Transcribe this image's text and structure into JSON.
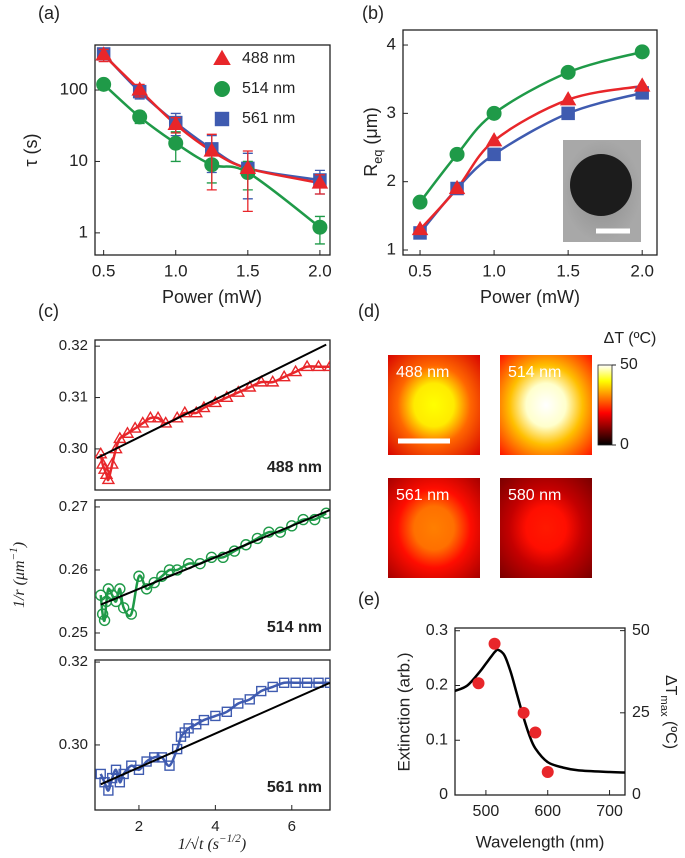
{
  "chart_data": [
    {
      "type": "line",
      "label": "(a)",
      "xlabel": "Power (mW)",
      "ylabel": "τ (s)",
      "ylog": true,
      "x": [
        0.5,
        0.75,
        1.0,
        1.25,
        1.5,
        2.0
      ],
      "xlim": [
        0.44,
        2.07
      ],
      "xticks": [
        0.5,
        {
          "value": 1,
          "label": "1.0"
        },
        1.5,
        {
          "value": 2,
          "label": "2.0"
        }
      ],
      "ylim": [
        0.49,
        427
      ],
      "yticks": [
        1,
        10,
        100
      ],
      "legend": "upper right",
      "series": [
        {
          "name": "488 nm",
          "color": "#e8262a",
          "marker": "triangle",
          "values": [
            310,
            100,
            33,
            14,
            8,
            5
          ],
          "errors": [
            60,
            20,
            8,
            10,
            6,
            1.5
          ]
        },
        {
          "name": "514 nm",
          "color": "#1f9a48",
          "marker": "circle",
          "values": [
            120,
            42,
            18,
            9,
            7,
            1.2
          ],
          "errors": [
            10,
            8,
            8,
            4,
            3,
            0.5
          ]
        },
        {
          "name": "561 nm",
          "color": "#3f5bb0",
          "marker": "square",
          "values": [
            320,
            95,
            35,
            15,
            8,
            5.5
          ],
          "errors": [
            50,
            20,
            12,
            8,
            5,
            2
          ]
        }
      ]
    },
    {
      "type": "line",
      "label": "(b)",
      "xlabel": "Power (mW)",
      "ylabel": [
        {
          "text": "R"
        },
        {
          "text": "eq",
          "sub": true
        },
        {
          "text": " (μm)"
        }
      ],
      "x": [
        0.5,
        0.75,
        1.0,
        1.5,
        2.0
      ],
      "xlim": [
        0.385,
        2.1
      ],
      "xticks": [
        0.5,
        {
          "value": 1,
          "label": "1.0"
        },
        1.5,
        {
          "value": 2,
          "label": "2.0"
        }
      ],
      "ylim": [
        0.927,
        4.22
      ],
      "yticks": [
        1,
        2,
        3,
        4
      ],
      "series": [
        {
          "color": "#e8262a",
          "marker": "triangle",
          "values": [
            1.3,
            1.9,
            2.6,
            3.2,
            3.4
          ]
        },
        {
          "color": "#1f9a48",
          "marker": "circle",
          "values": [
            1.7,
            2.4,
            3.0,
            3.6,
            3.9
          ]
        },
        {
          "color": "#3f5bb0",
          "marker": "square",
          "values": [
            1.25,
            1.9,
            2.4,
            3.0,
            3.3
          ]
        }
      ]
    },
    {
      "type": "scatter",
      "label": "(c)",
      "xlim": [
        0.85,
        7.0
      ],
      "ylim": [
        0.292,
        0.3212
      ],
      "yticks": [
        {
          "value": 0.3,
          "label": "0.30"
        },
        0.31,
        0.32
      ],
      "series": [
        {
          "name": "488 nm",
          "color": "#e8262a",
          "marker": "triangle-open",
          "x": [
            1.0,
            1.05,
            1.1,
            1.15,
            1.2,
            1.3,
            1.4,
            1.5,
            1.7,
            1.9,
            2.1,
            2.3,
            2.5,
            2.7,
            3.0,
            3.2,
            3.5,
            3.7,
            4.0,
            4.3,
            4.6,
            4.9,
            5.2,
            5.5,
            5.8,
            6.1,
            6.4,
            6.7,
            7.0
          ],
          "values": [
            0.299,
            0.297,
            0.296,
            0.295,
            0.294,
            0.297,
            0.3,
            0.302,
            0.303,
            0.304,
            0.305,
            0.306,
            0.306,
            0.305,
            0.306,
            0.307,
            0.307,
            0.308,
            0.309,
            0.31,
            0.311,
            0.312,
            0.313,
            0.313,
            0.314,
            0.315,
            0.316,
            0.316,
            0.316
          ]
        }
      ],
      "fit": {
        "color": "#000000",
        "x": [
          0.9,
          6.9
        ],
        "y": [
          0.2982,
          0.3203
        ]
      }
    },
    {
      "type": "scatter",
      "xlim": [
        0.85,
        7.0
      ],
      "ylim": [
        0.2473,
        0.2711
      ],
      "yticks": [
        0.25,
        0.26,
        0.27
      ],
      "ylabel": [
        {
          "text": "1/r (μm"
        },
        {
          "text": "−1",
          "sup": true
        },
        {
          "text": ")"
        }
      ],
      "series": [
        {
          "name": "514 nm",
          "color": "#1f9a48",
          "marker": "circle-open",
          "x": [
            1.0,
            1.05,
            1.1,
            1.15,
            1.2,
            1.3,
            1.4,
            1.5,
            1.6,
            1.8,
            2.0,
            2.2,
            2.4,
            2.6,
            2.8,
            3.0,
            3.3,
            3.6,
            3.9,
            4.2,
            4.5,
            4.8,
            5.1,
            5.4,
            5.7,
            6.0,
            6.3,
            6.6,
            6.9
          ],
          "values": [
            0.256,
            0.253,
            0.252,
            0.255,
            0.257,
            0.256,
            0.255,
            0.257,
            0.254,
            0.253,
            0.259,
            0.257,
            0.258,
            0.259,
            0.26,
            0.26,
            0.261,
            0.261,
            0.262,
            0.262,
            0.263,
            0.264,
            0.265,
            0.266,
            0.266,
            0.267,
            0.268,
            0.268,
            0.269
          ]
        }
      ],
      "fit": {
        "color": "#000000",
        "x": [
          1.0,
          7.0
        ],
        "y": [
          0.2545,
          0.2695
        ]
      }
    },
    {
      "type": "scatter",
      "xlim": [
        0.85,
        7.0
      ],
      "ylim": [
        0.2843,
        0.3205
      ],
      "xticks": [
        2,
        4,
        6
      ],
      "yticks": [
        {
          "value": 0.3,
          "label": "0.30"
        },
        0.32
      ],
      "xlabel": [
        {
          "text": "1/√t  (s"
        },
        {
          "text": "−1/2",
          "sup": true
        },
        {
          "text": ")"
        }
      ],
      "series": [
        {
          "name": "561 nm",
          "color": "#3f5bb0",
          "marker": "square-open",
          "x": [
            1.0,
            1.1,
            1.2,
            1.3,
            1.4,
            1.5,
            1.6,
            1.8,
            2.0,
            2.2,
            2.4,
            2.6,
            2.8,
            3.0,
            3.1,
            3.2,
            3.3,
            3.5,
            3.7,
            4.0,
            4.3,
            4.6,
            4.9,
            5.2,
            5.5,
            5.8,
            6.1,
            6.4,
            6.7,
            7.0
          ],
          "values": [
            0.293,
            0.291,
            0.289,
            0.292,
            0.294,
            0.291,
            0.293,
            0.295,
            0.294,
            0.296,
            0.297,
            0.297,
            0.295,
            0.299,
            0.302,
            0.303,
            0.304,
            0.305,
            0.306,
            0.307,
            0.308,
            0.31,
            0.311,
            0.313,
            0.314,
            0.315,
            0.315,
            0.315,
            0.315,
            0.315
          ]
        }
      ],
      "fit": {
        "color": "#000000",
        "x": [
          1.0,
          7.0
        ],
        "y": [
          0.2905,
          0.315
        ]
      }
    },
    {
      "type": "heatmap",
      "label": "(d)",
      "images": [
        {
          "name": "488 nm",
          "peak": 40
        },
        {
          "name": "514 nm",
          "peak": 50
        },
        {
          "name": "561 nm",
          "peak": 30
        },
        {
          "name": "580 nm",
          "peak": 22
        }
      ],
      "colorbar": {
        "label": "ΔT (ºC)",
        "lim": [
          0,
          50
        ],
        "ticks": [
          0,
          50
        ]
      }
    },
    {
      "type": "line",
      "label": "(e)",
      "xlabel": "Wavelength (nm)",
      "ylabel": "Extinction (arb.)",
      "y2label": [
        {
          "text": "ΔT"
        },
        {
          "text": "max",
          "sub": true
        },
        {
          "text": " (ºC)"
        }
      ],
      "x": [
        450,
        470,
        490,
        500,
        510,
        515,
        520,
        530,
        540,
        550,
        560,
        570,
        580,
        600,
        625,
        650,
        700,
        725
      ],
      "xlim": [
        450,
        725
      ],
      "xticks": [
        500,
        600,
        700
      ],
      "ylim": [
        0,
        0.305
      ],
      "yticks": [
        0,
        0.1,
        0.2,
        0.3
      ],
      "y2lim": [
        0,
        50.8
      ],
      "y2ticks": [
        0,
        25,
        50
      ],
      "series": [
        {
          "color": "#000000",
          "marker": "none",
          "values": [
            0.19,
            0.2,
            0.225,
            0.24,
            0.255,
            0.262,
            0.265,
            0.255,
            0.225,
            0.185,
            0.145,
            0.11,
            0.085,
            0.06,
            0.05,
            0.045,
            0.042,
            0.041
          ]
        },
        {
          "color": "#e8262a",
          "marker": "circle",
          "line": false,
          "axis": "y2",
          "x": [
            488,
            514,
            561,
            580,
            600
          ],
          "values": [
            34,
            46,
            25,
            19,
            7
          ]
        }
      ]
    }
  ]
}
